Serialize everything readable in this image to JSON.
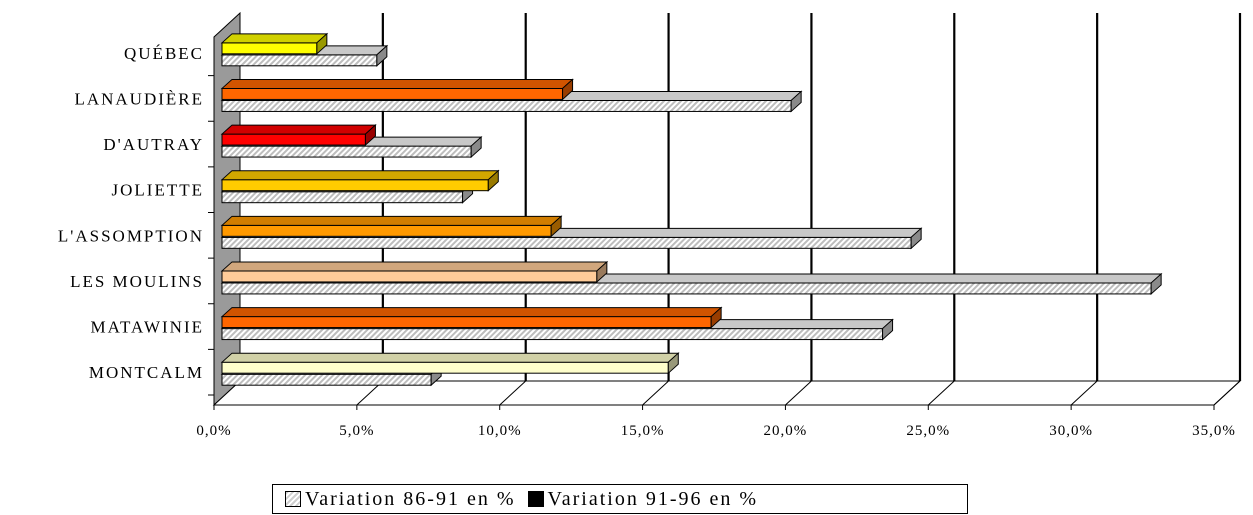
{
  "chart_data": {
    "type": "bar",
    "orientation": "horizontal",
    "categories": [
      "QUÉBEC",
      "LANAUDIÈRE",
      "D'AUTRAY",
      "JOLIETTE",
      "L'ASSOMPTION",
      "LES MOULINS",
      "MATAWINIE",
      "MONTCALM"
    ],
    "series": [
      {
        "name": "Variation 86-91 en %",
        "values": [
          5.7,
          20.2,
          9.0,
          8.7,
          24.4,
          32.8,
          23.4,
          7.6
        ],
        "fill": "hatched-grey"
      },
      {
        "name": "Variation 91-96 en %",
        "values": [
          3.6,
          12.2,
          5.3,
          9.6,
          11.8,
          13.4,
          17.4,
          15.9
        ],
        "colors": [
          "#ffff00",
          "#ff6600",
          "#ff0000",
          "#ffcc00",
          "#ff9900",
          "#ffcc99",
          "#ff6600",
          "#ffffcc"
        ]
      }
    ],
    "xlim": [
      0,
      35
    ],
    "xticks": [
      "0,0%",
      "5,0%",
      "10,0%",
      "15,0%",
      "20,0%",
      "25,0%",
      "30,0%",
      "35,0%"
    ],
    "xtick_values": [
      0,
      5,
      10,
      15,
      20,
      25,
      30,
      35
    ],
    "grid": true,
    "legend_position": "bottom",
    "style": "3d"
  },
  "legend": {
    "item1": "Variation 86-91 en %",
    "item2": "Variation 91-96 en %"
  }
}
